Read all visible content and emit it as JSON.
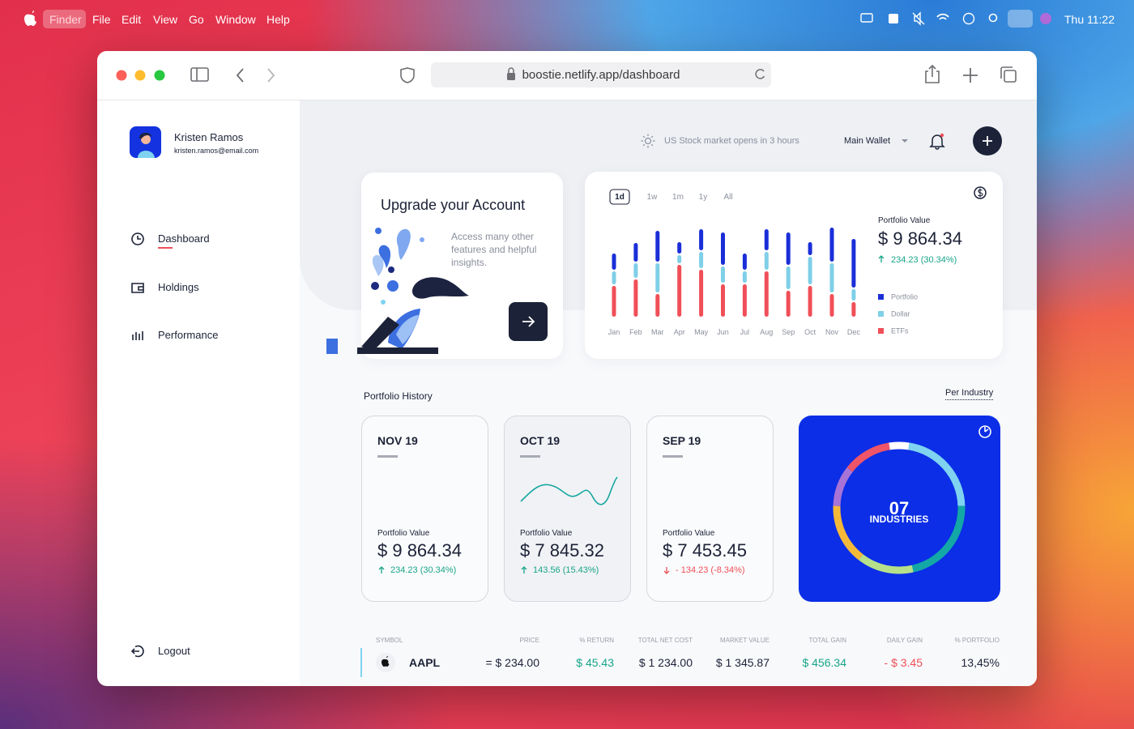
{
  "menubar": {
    "items": [
      "Finder",
      "File",
      "Edit",
      "View",
      "Go",
      "Window",
      "Help"
    ],
    "clock": "Thu 11:22"
  },
  "browser": {
    "url": "boostie.netlify.app/dashboard"
  },
  "sidebar": {
    "user_name": "Kristen Ramos",
    "user_email": "kristen.ramos@email.com",
    "nav": [
      "Dashboard",
      "Holdings",
      "Performance"
    ],
    "logout": "Logout"
  },
  "header": {
    "market_notice": "US Stock market opens in 3 hours",
    "wallet": "Main Wallet"
  },
  "upgrade_card": {
    "title": "Upgrade your Account",
    "text": "Access many other features and helpful insights."
  },
  "chart_data": [
    {
      "type": "bar",
      "stacked": true,
      "periods": [
        "1d",
        "1w",
        "1m",
        "1y",
        "All"
      ],
      "active_period_index": 0,
      "summary_label": "Portfolio Value",
      "summary_value": "$ 9 864.34",
      "summary_change": "234.23 (30.34%)",
      "categories": [
        "Jan",
        "Feb",
        "Mar",
        "Apr",
        "May",
        "Jun",
        "Jul",
        "Aug",
        "Sep",
        "Oct",
        "Nov",
        "Dec"
      ],
      "series": [
        {
          "name": "Portfolio",
          "color": "#1a2fd8",
          "values": [
            22,
            25,
            40,
            16,
            28,
            42,
            22,
            28,
            42,
            18,
            44,
            62
          ]
        },
        {
          "name": "Dollar",
          "color": "#7fcfe8",
          "values": [
            18,
            20,
            38,
            12,
            22,
            22,
            16,
            24,
            30,
            36,
            38,
            16
          ]
        },
        {
          "name": "ETFs",
          "color": "#f04f58",
          "values": [
            40,
            48,
            30,
            66,
            60,
            42,
            42,
            58,
            34,
            40,
            30,
            20
          ]
        }
      ],
      "ylim": [
        0,
        120
      ]
    },
    {
      "type": "donut",
      "center_value": "07",
      "center_label": "INDUSTRIES",
      "values": [
        5,
        22,
        22,
        14,
        15,
        10,
        12
      ],
      "colors": [
        "#ffffff",
        "#7fd3f0",
        "#13a8a6",
        "#b6e08a",
        "#f5b93a",
        "#a873d6",
        "#ef5468"
      ]
    }
  ],
  "history": {
    "title": "Portfolio History",
    "filter": "Per Industry",
    "cards": [
      {
        "month": "NOV 19",
        "label": "Portfolio Value",
        "value": "$ 9 864.34",
        "change": "234.23 (30.34%)"
      },
      {
        "month": "OCT 19",
        "label": "Portfolio Value",
        "value": "$ 7 845.32",
        "change": "143.56 (15.43%)"
      },
      {
        "month": "SEP 19",
        "label": "Portfolio Value",
        "value": "$ 7 453.45",
        "change": "- 134.23 (-8.34%)"
      }
    ]
  },
  "table": {
    "headers": [
      "SYMBOL",
      "PRICE",
      "% RETURN",
      "TOTAL NET COST",
      "MARKET VALUE",
      "TOTAL GAIN",
      "DAILY GAIN",
      "% PORTFOLIO"
    ],
    "rows": [
      [
        "AAPL",
        "= $ 234.00",
        "$ 45.43",
        "$ 1 234.00",
        "$ 1 345.87",
        "$ 456.34",
        "- $ 3.45",
        "13,45%"
      ]
    ]
  }
}
